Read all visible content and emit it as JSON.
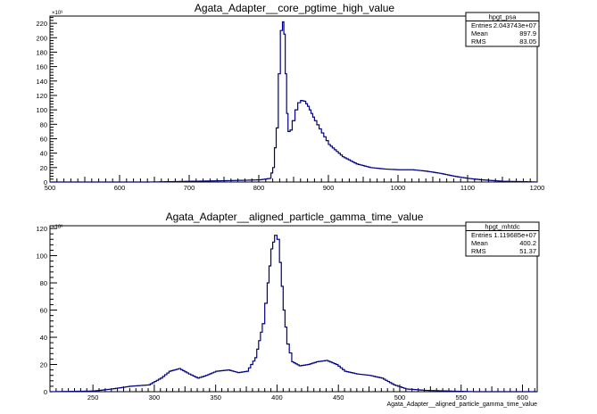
{
  "chart_data": [
    {
      "type": "line",
      "title": "Agata_Adapter__core_pgtime_high_value",
      "xlabel": "",
      "ylabel": "",
      "y_exponent": "×10³",
      "xlim": [
        500,
        1200
      ],
      "ylim": [
        0,
        230
      ],
      "x_ticks": [
        500,
        600,
        700,
        800,
        900,
        1000,
        1100,
        1200
      ],
      "y_ticks": [
        0,
        20,
        40,
        60,
        80,
        100,
        120,
        140,
        160,
        180,
        200,
        220
      ],
      "color": "#000080",
      "stats": {
        "name": "hpgt_psa",
        "rows": [
          {
            "label": "Entries",
            "value": "2.043743e+07"
          },
          {
            "label": "Mean",
            "value": "897.9"
          },
          {
            "label": "RMS",
            "value": "83.05"
          }
        ]
      },
      "x": [
        500,
        640,
        700,
        760,
        800,
        815,
        820,
        825,
        828,
        831,
        834,
        836,
        838,
        840,
        842,
        845,
        848,
        852,
        856,
        860,
        865,
        870,
        875,
        880,
        890,
        900,
        920,
        940,
        960,
        980,
        1000,
        1020,
        1040,
        1060,
        1080,
        1100,
        1120,
        1150,
        1180,
        1200
      ],
      "y": [
        0,
        0,
        1,
        2,
        3,
        5,
        20,
        75,
        150,
        210,
        222,
        205,
        150,
        95,
        70,
        72,
        85,
        100,
        110,
        113,
        112,
        105,
        95,
        85,
        68,
        52,
        35,
        25,
        20,
        18,
        17,
        17,
        15,
        12,
        8,
        5,
        3,
        1,
        0.5,
        0
      ]
    },
    {
      "type": "line",
      "title": "Agata_Adapter__aligned_particle_gamma_time_value",
      "xlabel": "Agata_Adapter__aligned_particle_gamma_time_value",
      "ylabel": "",
      "y_exponent": "×10³",
      "xlim": [
        215,
        612
      ],
      "ylim": [
        0,
        122
      ],
      "x_ticks": [
        250,
        300,
        350,
        400,
        450,
        500,
        550,
        600
      ],
      "y_ticks": [
        0,
        20,
        40,
        60,
        80,
        100,
        120
      ],
      "color": "#000080",
      "stats": {
        "name": "hpgt_mhtdc",
        "rows": [
          {
            "label": "Entries",
            "value": "1.119685e+07"
          },
          {
            "label": "Mean",
            "value": "400.2"
          },
          {
            "label": "RMS",
            "value": "51.37"
          }
        ]
      },
      "x": [
        215,
        250,
        265,
        280,
        295,
        305,
        312,
        320,
        328,
        335,
        342,
        350,
        360,
        368,
        375,
        382,
        388,
        392,
        395,
        398,
        400,
        402,
        405,
        408,
        412,
        418,
        425,
        432,
        440,
        448,
        455,
        465,
        475,
        485,
        495,
        505,
        520,
        540,
        560,
        612
      ],
      "y": [
        0,
        0.5,
        2,
        4,
        5,
        10,
        15,
        17,
        13,
        10,
        12,
        15,
        16,
        14,
        15,
        25,
        50,
        80,
        105,
        115,
        112,
        95,
        60,
        35,
        22,
        19,
        20,
        22,
        23,
        20,
        15,
        13,
        12,
        10,
        5,
        2,
        1,
        0.5,
        0,
        0
      ]
    }
  ]
}
